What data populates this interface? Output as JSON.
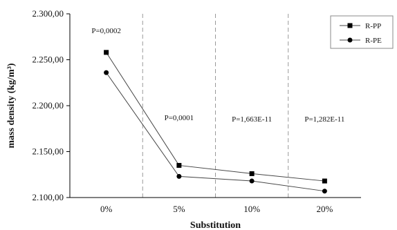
{
  "chart_data": {
    "type": "line",
    "xlabel": "Substitution",
    "ylabel": "mass density (kg/m³)",
    "categories": [
      "0%",
      "5%",
      "10%",
      "20%"
    ],
    "ylim": [
      2100,
      2300
    ],
    "yticks": [
      2100,
      2150,
      2200,
      2250,
      2300
    ],
    "ytick_labels": [
      "2.100,00",
      "2.150,00",
      "2.200,00",
      "2.250,00",
      "2.300,00"
    ],
    "grid": false,
    "group_separators": "dashed vertical lines between categories",
    "legend_position": "top-right",
    "series": [
      {
        "name": "R-PP",
        "marker": "square",
        "values": [
          2258,
          2135,
          2126,
          2118
        ]
      },
      {
        "name": "R-PE",
        "marker": "circle",
        "values": [
          2236,
          2123,
          2118,
          2107
        ]
      }
    ],
    "annotations": [
      "P=0,0002",
      "P=0,0001",
      "P=1,663E-11",
      "P=1,282E-11"
    ],
    "colors": {
      "line": "#444444",
      "marker": "#000000",
      "separator": "#999999",
      "axis": "#000000"
    }
  }
}
